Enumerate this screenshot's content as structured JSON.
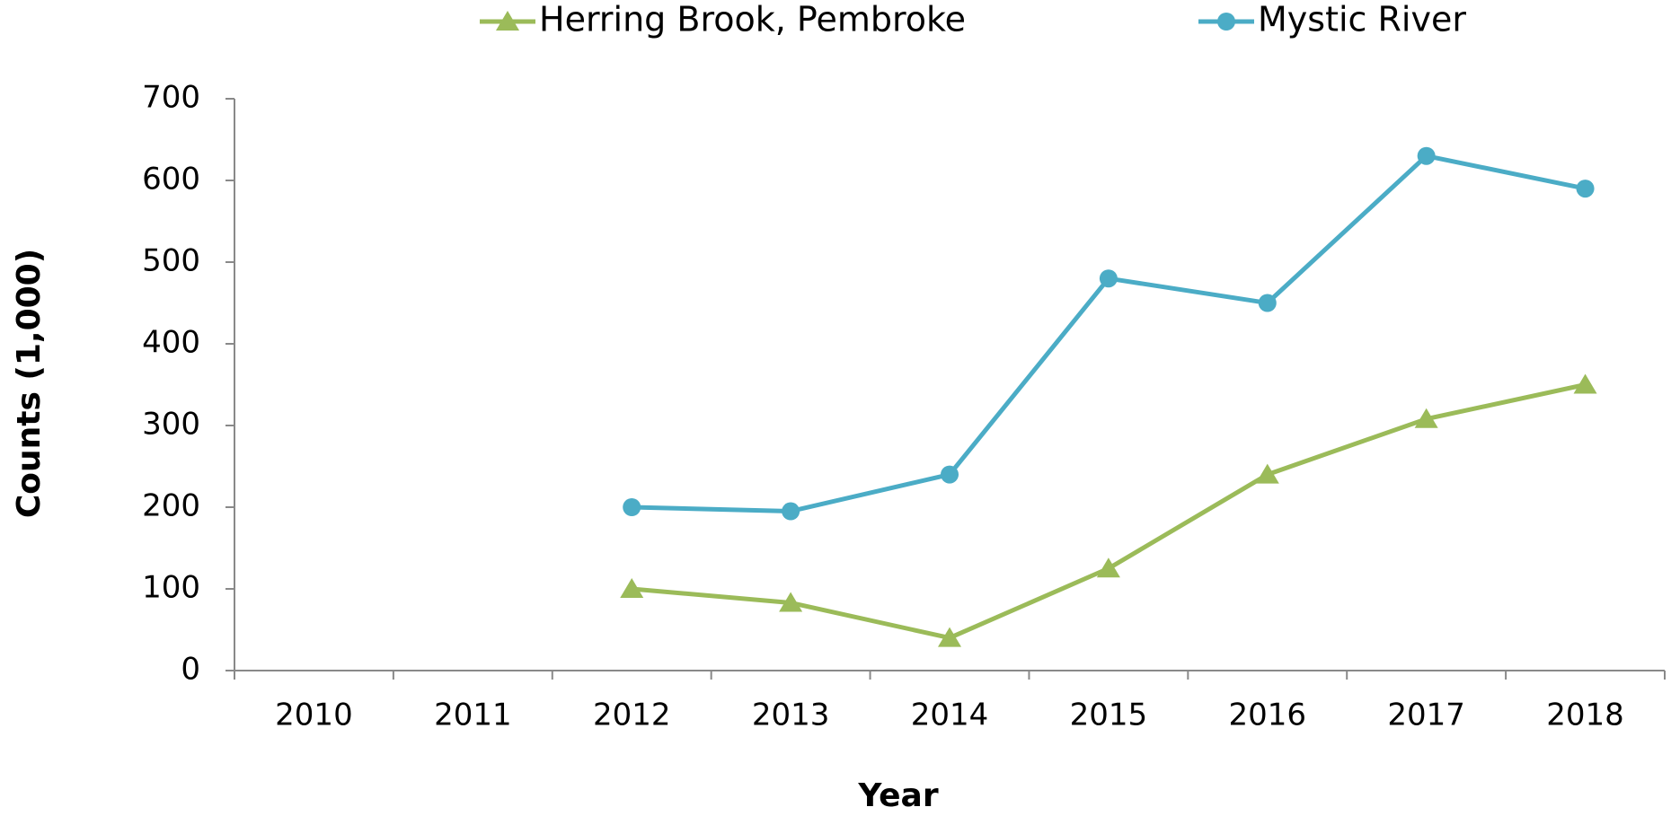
{
  "chart_data": {
    "type": "line",
    "x_label": "Year",
    "y_label": "Counts (1,000)",
    "categories": [
      "2010",
      "2011",
      "2012",
      "2013",
      "2014",
      "2015",
      "2016",
      "2017",
      "2018"
    ],
    "series": [
      {
        "name": "Herring Brook, Pembroke",
        "color": "#9bbb59",
        "marker": "triangle",
        "values": [
          null,
          null,
          100,
          83,
          40,
          125,
          240,
          308,
          350
        ]
      },
      {
        "name": "Mystic River",
        "color": "#4bacc6",
        "marker": "circle",
        "values": [
          null,
          null,
          200,
          195,
          240,
          480,
          450,
          630,
          590
        ]
      }
    ],
    "ylim": [
      0,
      700
    ],
    "yticks": [
      0,
      100,
      200,
      300,
      400,
      500,
      600,
      700
    ],
    "legend": "top",
    "grid": false
  }
}
